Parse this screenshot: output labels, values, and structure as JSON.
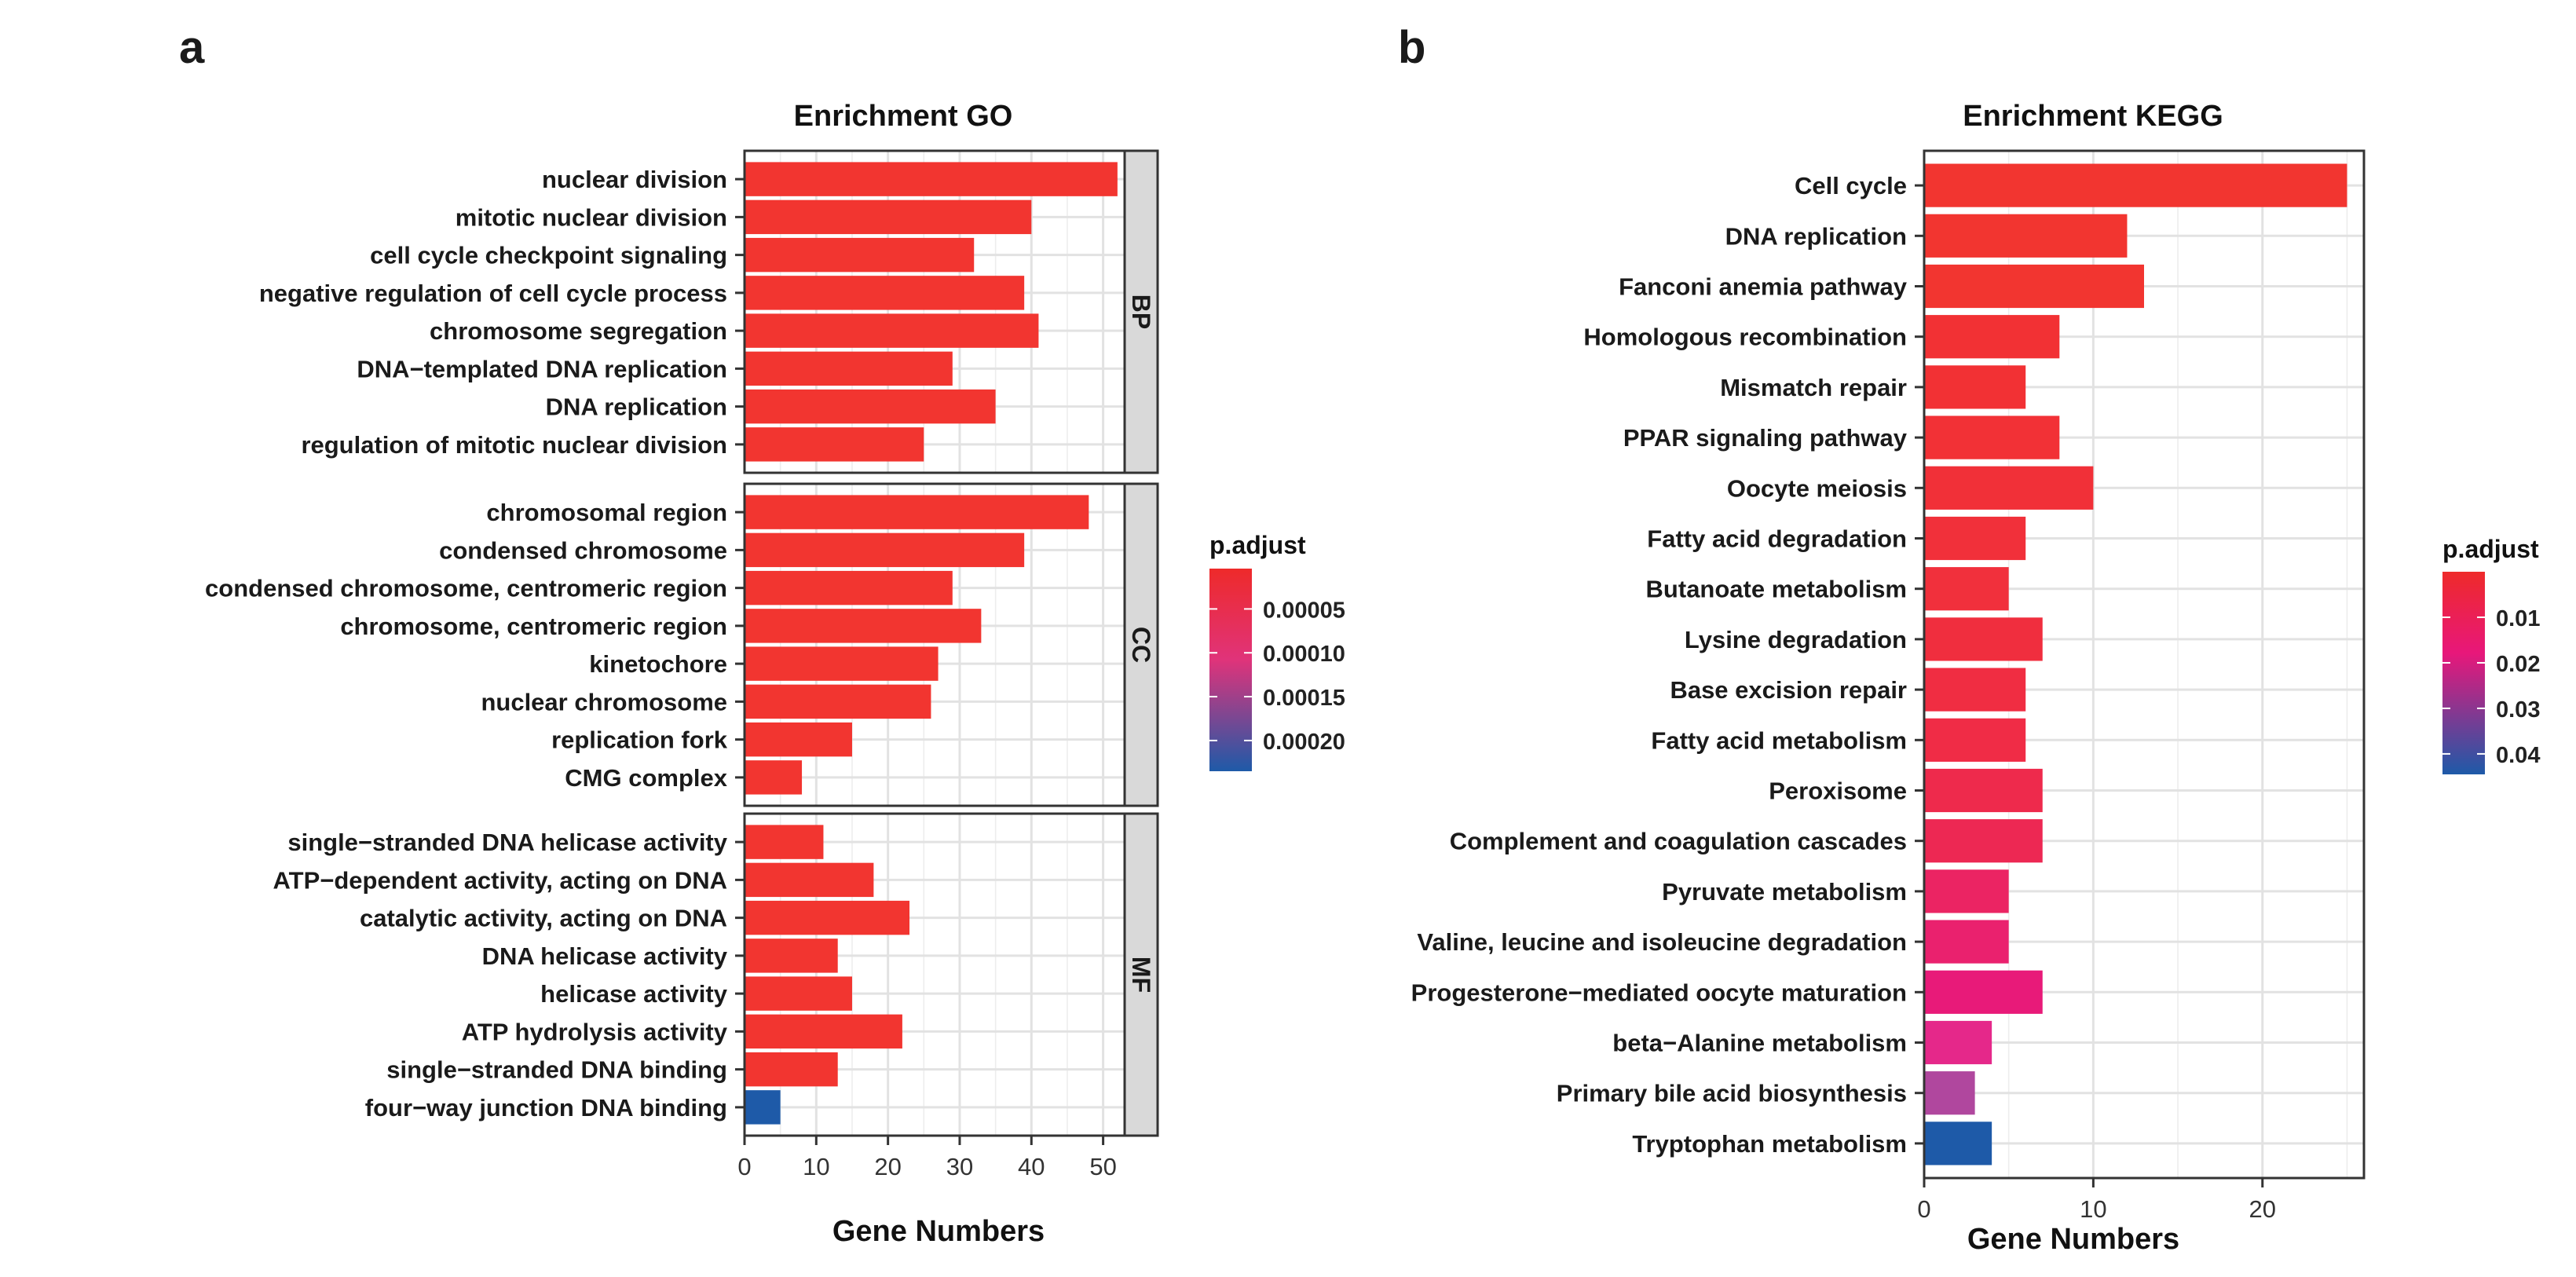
{
  "panels": {
    "a": {
      "letter": "a"
    },
    "b": {
      "letter": "b"
    }
  },
  "chart_data": [
    {
      "id": "go",
      "type": "bar",
      "orientation": "horizontal",
      "title": "Enrichment GO",
      "xlabel": "Gene Numbers",
      "ylabel": "",
      "xlim": [
        0,
        53
      ],
      "xticks": [
        0,
        10,
        20,
        30,
        40,
        50
      ],
      "legend": {
        "title": "p.adjust",
        "position": "right",
        "ticks": [
          "0.00005",
          "0.00010",
          "0.00015",
          "0.00020"
        ],
        "color_low": "#ee2a2a",
        "color_mid": "#e0337a",
        "color_high": "#1e5aa8"
      },
      "facets": [
        {
          "name": "BP",
          "categories": [
            "nuclear division",
            "mitotic nuclear division",
            "cell cycle checkpoint signaling",
            "negative regulation of cell cycle process",
            "chromosome segregation",
            "DNA−templated DNA replication",
            "DNA replication",
            "regulation of mitotic nuclear division"
          ],
          "values": [
            52,
            40,
            32,
            39,
            41,
            29,
            35,
            25
          ],
          "colors": [
            "#f23530",
            "#f23530",
            "#f23530",
            "#f23530",
            "#f23530",
            "#f23530",
            "#f23530",
            "#f23530"
          ]
        },
        {
          "name": "CC",
          "categories": [
            "chromosomal region",
            "condensed chromosome",
            "condensed chromosome, centromeric region",
            "chromosome, centromeric region",
            "kinetochore",
            "nuclear chromosome",
            "replication fork",
            "CMG complex"
          ],
          "values": [
            48,
            39,
            29,
            33,
            27,
            26,
            15,
            8
          ],
          "colors": [
            "#f23530",
            "#f23530",
            "#f23530",
            "#f23530",
            "#f23530",
            "#f23530",
            "#f23530",
            "#f23530"
          ]
        },
        {
          "name": "MF",
          "categories": [
            "single−stranded DNA helicase activity",
            "ATP−dependent activity, acting on DNA",
            "catalytic activity, acting on DNA",
            "DNA helicase activity",
            "helicase activity",
            "ATP hydrolysis activity",
            "single−stranded DNA binding",
            "four−way junction DNA binding"
          ],
          "values": [
            11,
            18,
            23,
            13,
            15,
            22,
            13,
            5
          ],
          "colors": [
            "#f23530",
            "#f23530",
            "#f23530",
            "#f23530",
            "#f23530",
            "#f23530",
            "#f23530",
            "#1e5aa8"
          ]
        }
      ]
    },
    {
      "id": "kegg",
      "type": "bar",
      "orientation": "horizontal",
      "title": "Enrichment KEGG",
      "xlabel": "Gene Numbers",
      "ylabel": "",
      "xlim": [
        0,
        26
      ],
      "xticks": [
        0,
        10,
        20
      ],
      "legend": {
        "title": "p.adjust",
        "position": "right",
        "ticks": [
          "0.01",
          "0.02",
          "0.03",
          "0.04"
        ],
        "color_low": "#ee2a2a",
        "color_mid": "#e8177a",
        "color_high": "#1e5aa8"
      },
      "categories": [
        "Cell cycle",
        "DNA replication",
        "Fanconi anemia pathway",
        "Homologous recombination",
        "Mismatch repair",
        "PPAR signaling pathway",
        "Oocyte meiosis",
        "Fatty acid degradation",
        "Butanoate metabolism",
        "Lysine degradation",
        "Base excision repair",
        "Fatty acid metabolism",
        "Peroxisome",
        "Complement and coagulation cascades",
        "Pyruvate metabolism",
        "Valine, leucine and isoleucine degradation",
        "Progesterone−mediated oocyte maturation",
        "beta−Alanine metabolism",
        "Primary bile acid biosynthesis",
        "Tryptophan metabolism"
      ],
      "values": [
        25,
        12,
        13,
        8,
        6,
        8,
        10,
        6,
        5,
        7,
        6,
        6,
        7,
        7,
        5,
        5,
        7,
        4,
        3,
        4
      ],
      "colors": [
        "#f23530",
        "#f23530",
        "#f23530",
        "#f23134",
        "#f23134",
        "#f23136",
        "#f13038",
        "#f1303a",
        "#f1303c",
        "#f02e3e",
        "#f02d42",
        "#f02c46",
        "#ee2a4c",
        "#ed2853",
        "#eb2463",
        "#ea216e",
        "#e81a79",
        "#e5288a",
        "#b0479e",
        "#1e5aa8"
      ]
    }
  ]
}
